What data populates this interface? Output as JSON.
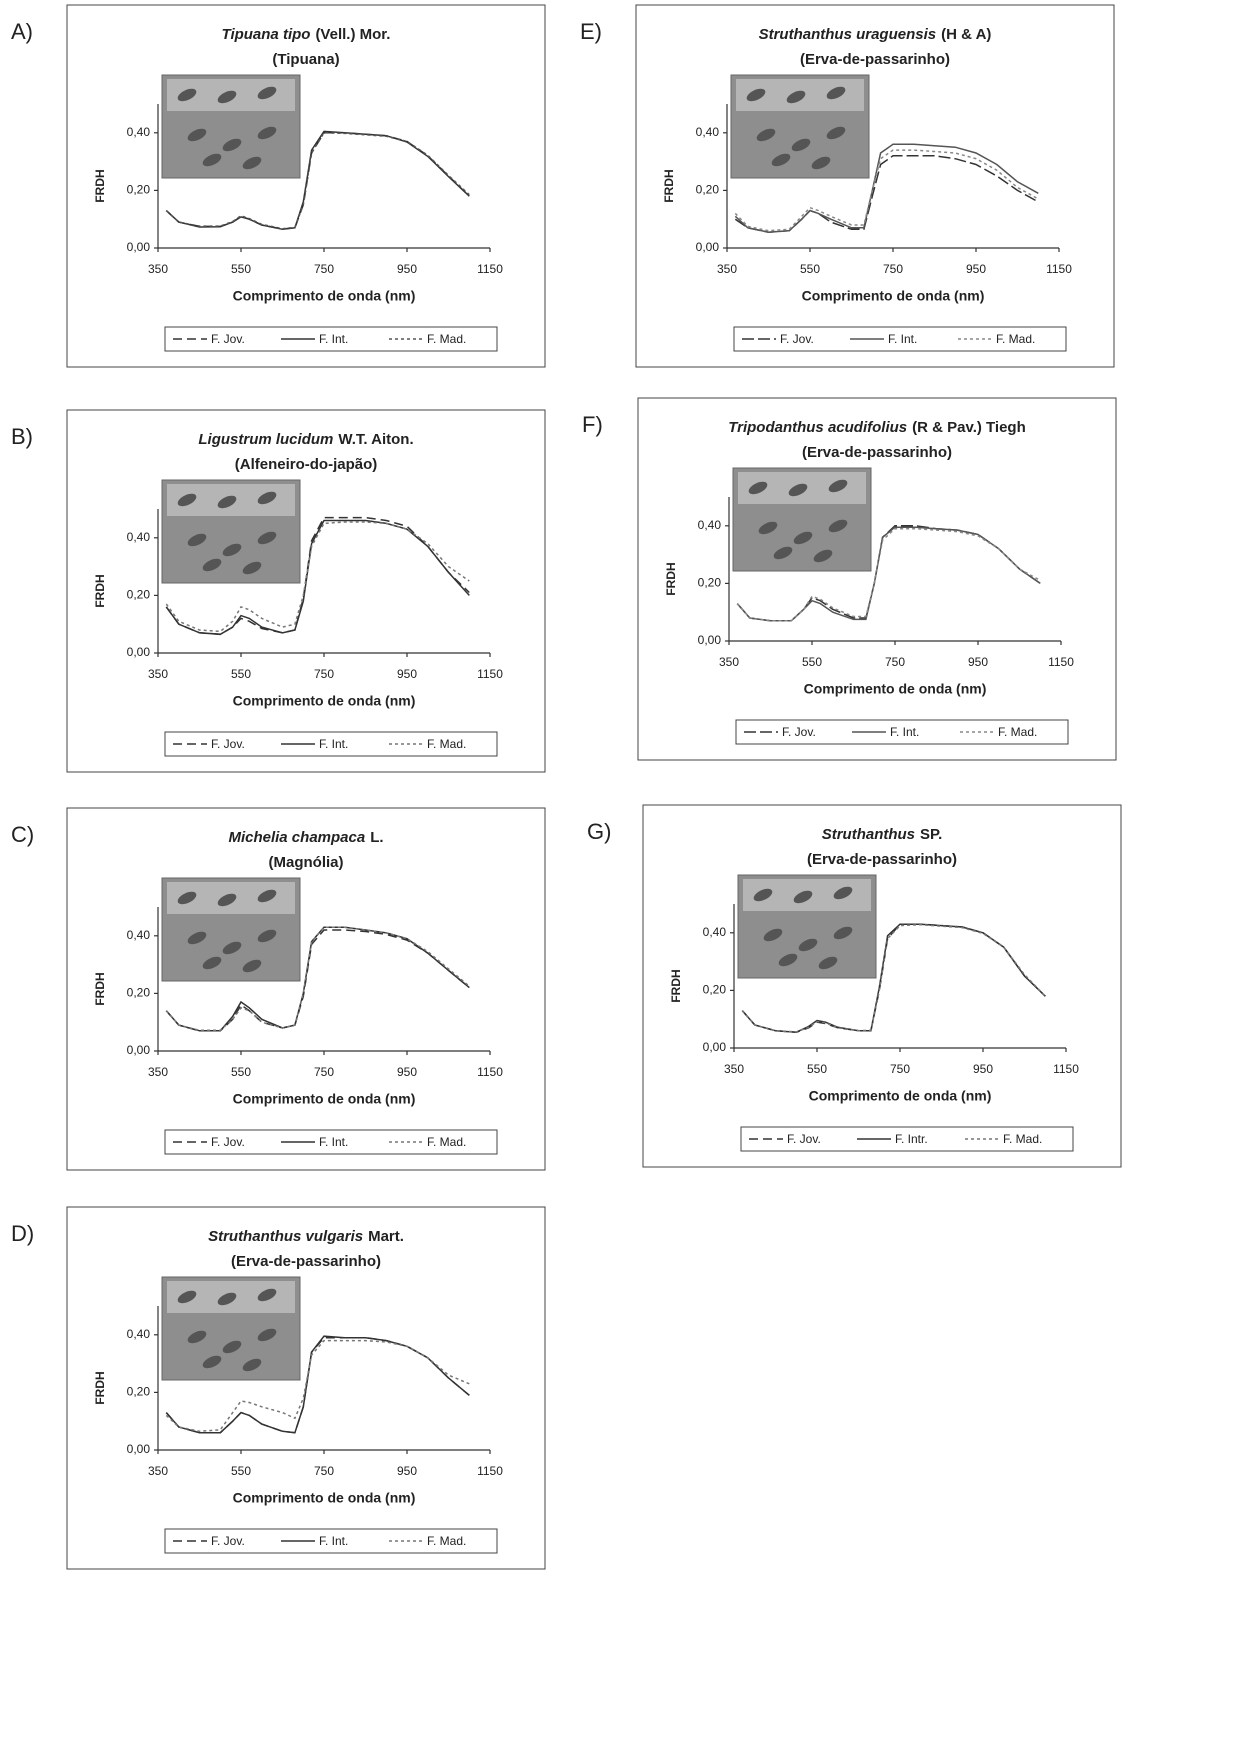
{
  "chart_data": [
    {
      "type": "line",
      "label": "A)",
      "title_italic": "Tipuana tipo",
      "title_rest": "(Vell.) Mor.",
      "subtitle": "(Tipuana)",
      "xlabel": "Comprimento de onda (nm)",
      "ylabel": "FRDH",
      "x": [
        370,
        400,
        450,
        500,
        530,
        550,
        570,
        600,
        650,
        680,
        700,
        720,
        750,
        800,
        850,
        900,
        950,
        1000,
        1050,
        1100
      ],
      "xlim": [
        350,
        1150
      ],
      "xticks": [
        350,
        550,
        750,
        950,
        1150
      ],
      "ylim": [
        0,
        0.5
      ],
      "yticks": [
        {
          "value": 0,
          "label": "0,00"
        },
        {
          "value": 0.2,
          "label": "0,20"
        },
        {
          "value": 0.4,
          "label": "0,40"
        }
      ],
      "series": [
        {
          "name": "F. Jov.",
          "color": "#333333",
          "dash": "9,5",
          "values": [
            0.13,
            0.09,
            0.075,
            0.075,
            0.09,
            0.11,
            0.1,
            0.08,
            0.066,
            0.07,
            0.15,
            0.33,
            0.4,
            0.4,
            0.395,
            0.39,
            0.37,
            0.32,
            0.25,
            0.18
          ]
        },
        {
          "name": "F. Int.",
          "color": "#333333",
          "dash": "none",
          "values": [
            0.13,
            0.09,
            0.073,
            0.074,
            0.09,
            0.108,
            0.1,
            0.08,
            0.065,
            0.07,
            0.16,
            0.34,
            0.405,
            0.4,
            0.395,
            0.39,
            0.368,
            0.318,
            0.248,
            0.18
          ]
        },
        {
          "name": "F. Mad.",
          "color": "#555555",
          "dash": "3,3",
          "values": [
            0.13,
            0.09,
            0.076,
            0.076,
            0.092,
            0.112,
            0.102,
            0.082,
            0.067,
            0.072,
            0.15,
            0.33,
            0.4,
            0.398,
            0.393,
            0.388,
            0.37,
            0.322,
            0.252,
            0.185
          ]
        }
      ]
    },
    {
      "type": "line",
      "label": "B)",
      "title_italic": "Ligustrum lucidum",
      "title_rest": "W.T. Aiton.",
      "subtitle": "(Alfeneiro-do-japão)",
      "xlabel": "Comprimento de onda (nm)",
      "ylabel": "FRDH",
      "x": [
        370,
        400,
        450,
        500,
        530,
        550,
        570,
        600,
        650,
        680,
        700,
        720,
        750,
        800,
        850,
        900,
        950,
        1000,
        1050,
        1100
      ],
      "xlim": [
        350,
        1150
      ],
      "xticks": [
        350,
        550,
        750,
        950,
        1150
      ],
      "ylim": [
        0,
        0.5
      ],
      "yticks": [
        {
          "value": 0,
          "label": "0,00"
        },
        {
          "value": 0.2,
          "label": "0,20"
        },
        {
          "value": 0.4,
          "label": "0,40"
        }
      ],
      "series": [
        {
          "name": "F. Jov.",
          "color": "#333333",
          "dash": "9,5",
          "values": [
            0.16,
            0.1,
            0.07,
            0.065,
            0.09,
            0.12,
            0.11,
            0.085,
            0.07,
            0.08,
            0.19,
            0.39,
            0.47,
            0.47,
            0.47,
            0.46,
            0.44,
            0.37,
            0.28,
            0.21
          ]
        },
        {
          "name": "F. Int.",
          "color": "#333333",
          "dash": "none",
          "values": [
            0.16,
            0.1,
            0.07,
            0.065,
            0.09,
            0.13,
            0.12,
            0.09,
            0.07,
            0.08,
            0.18,
            0.38,
            0.46,
            0.46,
            0.46,
            0.45,
            0.43,
            0.37,
            0.28,
            0.2
          ]
        },
        {
          "name": "F. Mad.",
          "color": "#777777",
          "dash": "3,3",
          "values": [
            0.17,
            0.11,
            0.08,
            0.075,
            0.11,
            0.16,
            0.15,
            0.12,
            0.09,
            0.1,
            0.2,
            0.37,
            0.45,
            0.455,
            0.455,
            0.45,
            0.43,
            0.38,
            0.3,
            0.25
          ]
        }
      ]
    },
    {
      "type": "line",
      "label": "C)",
      "title_italic": "Michelia champaca",
      "title_rest": "L.",
      "subtitle": "(Magnólia)",
      "xlabel": "Comprimento de onda (nm)",
      "ylabel": "FRDH",
      "x": [
        370,
        400,
        450,
        500,
        530,
        550,
        570,
        600,
        650,
        680,
        700,
        720,
        750,
        800,
        850,
        900,
        950,
        1000,
        1050,
        1100
      ],
      "xlim": [
        350,
        1150
      ],
      "xticks": [
        350,
        550,
        750,
        950,
        1150
      ],
      "ylim": [
        0,
        0.5
      ],
      "yticks": [
        {
          "value": 0,
          "label": "0,00"
        },
        {
          "value": 0.2,
          "label": "0,20"
        },
        {
          "value": 0.4,
          "label": "0,40"
        }
      ],
      "series": [
        {
          "name": "F. Jov.",
          "color": "#333333",
          "dash": "9,5",
          "values": [
            0.14,
            0.09,
            0.07,
            0.07,
            0.11,
            0.16,
            0.14,
            0.1,
            0.08,
            0.09,
            0.19,
            0.37,
            0.42,
            0.42,
            0.415,
            0.405,
            0.385,
            0.34,
            0.28,
            0.22
          ]
        },
        {
          "name": "F. Int.",
          "color": "#333333",
          "dash": "none",
          "values": [
            0.14,
            0.09,
            0.07,
            0.07,
            0.12,
            0.17,
            0.15,
            0.11,
            0.08,
            0.09,
            0.2,
            0.38,
            0.43,
            0.43,
            0.42,
            0.41,
            0.39,
            0.34,
            0.28,
            0.22
          ]
        },
        {
          "name": "F. Mad.",
          "color": "#777777",
          "dash": "3,3",
          "values": [
            0.14,
            0.09,
            0.072,
            0.072,
            0.11,
            0.15,
            0.14,
            0.1,
            0.08,
            0.09,
            0.2,
            0.38,
            0.43,
            0.43,
            0.42,
            0.41,
            0.39,
            0.345,
            0.285,
            0.225
          ]
        }
      ]
    },
    {
      "type": "line",
      "label": "D)",
      "title_italic": "Struthanthus vulgaris",
      "title_rest": "Mart.",
      "subtitle": "(Erva-de-passarinho)",
      "xlabel": "Comprimento de onda (nm)",
      "ylabel": "FRDH",
      "x": [
        370,
        400,
        450,
        500,
        530,
        550,
        570,
        600,
        650,
        680,
        700,
        720,
        750,
        800,
        850,
        900,
        950,
        1000,
        1050,
        1100
      ],
      "xlim": [
        350,
        1150
      ],
      "xticks": [
        350,
        550,
        750,
        950,
        1150
      ],
      "ylim": [
        0,
        0.5
      ],
      "yticks": [
        {
          "value": 0,
          "label": "0,00"
        },
        {
          "value": 0.2,
          "label": "0,20"
        },
        {
          "value": 0.4,
          "label": "0,40"
        }
      ],
      "series": [
        {
          "name": "F. Jov.",
          "color": "#333333",
          "dash": "9,5",
          "values": [
            0.13,
            0.08,
            0.06,
            0.06,
            0.1,
            0.13,
            0.12,
            0.09,
            0.065,
            0.06,
            0.15,
            0.34,
            0.39,
            0.39,
            0.39,
            0.38,
            0.36,
            0.32,
            0.25,
            0.19
          ]
        },
        {
          "name": "F. Int.",
          "color": "#333333",
          "dash": "none",
          "values": [
            0.13,
            0.08,
            0.06,
            0.06,
            0.1,
            0.13,
            0.12,
            0.09,
            0.065,
            0.06,
            0.15,
            0.34,
            0.395,
            0.39,
            0.39,
            0.38,
            0.36,
            0.32,
            0.25,
            0.19
          ]
        },
        {
          "name": "F. Mad.",
          "color": "#777777",
          "dash": "3,3",
          "values": [
            0.12,
            0.08,
            0.065,
            0.07,
            0.13,
            0.17,
            0.165,
            0.15,
            0.13,
            0.11,
            0.18,
            0.33,
            0.38,
            0.38,
            0.38,
            0.375,
            0.36,
            0.32,
            0.26,
            0.23
          ]
        }
      ]
    },
    {
      "type": "line",
      "label": "E)",
      "title_italic": "Struthanthus uraguensis",
      "title_rest": "(H & A)",
      "subtitle": "(Erva-de-passarinho)",
      "xlabel": "Comprimento de onda (nm)",
      "ylabel": "FRDH",
      "x": [
        370,
        400,
        450,
        500,
        530,
        550,
        570,
        600,
        650,
        680,
        700,
        720,
        750,
        800,
        850,
        900,
        950,
        1000,
        1050,
        1100
      ],
      "xlim": [
        350,
        1150
      ],
      "xticks": [
        350,
        550,
        750,
        950,
        1150
      ],
      "ylim": [
        0,
        0.5
      ],
      "yticks": [
        {
          "value": 0,
          "label": "0,00"
        },
        {
          "value": 0.2,
          "label": "0,20"
        },
        {
          "value": 0.4,
          "label": "0,40"
        }
      ],
      "series": [
        {
          "name": "F. Jov.",
          "color": "#333333",
          "dash": "12,4",
          "values": [
            0.1,
            0.07,
            0.055,
            0.06,
            0.1,
            0.13,
            0.12,
            0.09,
            0.065,
            0.065,
            0.18,
            0.29,
            0.32,
            0.32,
            0.32,
            0.31,
            0.29,
            0.25,
            0.2,
            0.16
          ]
        },
        {
          "name": "F. Int.",
          "color": "#555555",
          "dash": "none",
          "values": [
            0.11,
            0.07,
            0.055,
            0.06,
            0.1,
            0.13,
            0.12,
            0.1,
            0.07,
            0.07,
            0.2,
            0.33,
            0.36,
            0.36,
            0.355,
            0.35,
            0.33,
            0.29,
            0.23,
            0.19
          ]
        },
        {
          "name": "F. Mad.",
          "color": "#888888",
          "dash": "3,3",
          "values": [
            0.12,
            0.075,
            0.06,
            0.065,
            0.11,
            0.14,
            0.13,
            0.11,
            0.08,
            0.08,
            0.2,
            0.31,
            0.34,
            0.34,
            0.335,
            0.33,
            0.31,
            0.27,
            0.21,
            0.17
          ]
        }
      ]
    },
    {
      "type": "line",
      "label": "F)",
      "title_italic": "Tripodanthus acudifolius",
      "title_rest": "(R & Pav.) Tiegh",
      "subtitle": "(Erva-de-passarinho)",
      "xlabel": "Comprimento de onda (nm)",
      "ylabel": "FRDH",
      "x": [
        370,
        400,
        450,
        500,
        530,
        550,
        570,
        600,
        650,
        680,
        700,
        720,
        750,
        800,
        850,
        900,
        950,
        1000,
        1050,
        1100
      ],
      "xlim": [
        350,
        1150
      ],
      "xticks": [
        350,
        550,
        750,
        950,
        1150
      ],
      "ylim": [
        0,
        0.5
      ],
      "yticks": [
        {
          "value": 0,
          "label": "0,00"
        },
        {
          "value": 0.2,
          "label": "0,20"
        },
        {
          "value": 0.4,
          "label": "0,40"
        }
      ],
      "series": [
        {
          "name": "F. Jov.",
          "color": "#333333",
          "dash": "12,4",
          "values": [
            0.13,
            0.08,
            0.07,
            0.07,
            0.11,
            0.15,
            0.14,
            0.11,
            0.08,
            0.08,
            0.2,
            0.36,
            0.4,
            0.4,
            0.39,
            0.385,
            0.37,
            0.32,
            0.25,
            0.2
          ]
        },
        {
          "name": "F. Int.",
          "color": "#555555",
          "dash": "none",
          "values": [
            0.13,
            0.08,
            0.07,
            0.07,
            0.11,
            0.14,
            0.13,
            0.1,
            0.075,
            0.075,
            0.2,
            0.36,
            0.395,
            0.395,
            0.39,
            0.385,
            0.37,
            0.32,
            0.25,
            0.2
          ]
        },
        {
          "name": "F. Mad.",
          "color": "#888888",
          "dash": "3,3",
          "values": [
            0.13,
            0.08,
            0.07,
            0.07,
            0.11,
            0.155,
            0.145,
            0.115,
            0.085,
            0.085,
            0.2,
            0.35,
            0.39,
            0.39,
            0.385,
            0.38,
            0.365,
            0.32,
            0.25,
            0.21
          ]
        }
      ]
    },
    {
      "type": "line",
      "label": "G)",
      "title_italic": "Struthanthus",
      "title_rest": "SP.",
      "subtitle": "(Erva-de-passarinho)",
      "xlabel": "Comprimento de onda (nm)",
      "ylabel": "FRDH",
      "x": [
        370,
        400,
        450,
        500,
        530,
        550,
        570,
        600,
        650,
        680,
        700,
        720,
        750,
        800,
        850,
        900,
        950,
        1000,
        1050,
        1100
      ],
      "xlim": [
        350,
        1150
      ],
      "xticks": [
        350,
        550,
        750,
        950,
        1150
      ],
      "ylim": [
        0,
        0.5
      ],
      "yticks": [
        {
          "value": 0,
          "label": "0,00"
        },
        {
          "value": 0.2,
          "label": "0,20"
        },
        {
          "value": 0.4,
          "label": "0,40"
        }
      ],
      "series": [
        {
          "name": "F. Jov.",
          "color": "#333333",
          "dash": "9,5",
          "values": [
            0.13,
            0.08,
            0.06,
            0.055,
            0.07,
            0.09,
            0.085,
            0.07,
            0.06,
            0.06,
            0.2,
            0.38,
            0.43,
            0.43,
            0.425,
            0.42,
            0.4,
            0.35,
            0.25,
            0.18
          ]
        },
        {
          "name": "F. Intr.",
          "color": "#333333",
          "dash": "none",
          "values": [
            0.13,
            0.08,
            0.06,
            0.055,
            0.075,
            0.095,
            0.09,
            0.072,
            0.06,
            0.06,
            0.21,
            0.39,
            0.43,
            0.43,
            0.425,
            0.42,
            0.4,
            0.35,
            0.25,
            0.18
          ]
        },
        {
          "name": "F. Mad.",
          "color": "#777777",
          "dash": "3,3",
          "values": [
            0.13,
            0.08,
            0.06,
            0.056,
            0.072,
            0.092,
            0.088,
            0.07,
            0.06,
            0.062,
            0.2,
            0.38,
            0.425,
            0.428,
            0.423,
            0.418,
            0.398,
            0.35,
            0.255,
            0.18
          ]
        }
      ]
    }
  ]
}
